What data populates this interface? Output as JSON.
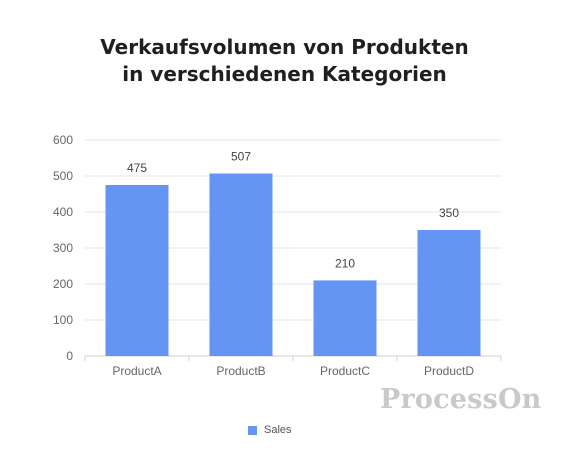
{
  "chart_data": {
    "type": "bar",
    "title": [
      "Verkaufsvolumen von Produkten",
      "in verschiedenen Kategorien"
    ],
    "categories": [
      "ProductA",
      "ProductB",
      "ProductC",
      "ProductD"
    ],
    "series": [
      {
        "name": "Sales",
        "values": [
          475,
          507,
          210,
          350
        ],
        "color": "#6495f5"
      }
    ],
    "ylim": [
      0,
      600
    ],
    "yticks": [
      0,
      100,
      200,
      300,
      400,
      500,
      600
    ],
    "grid": true,
    "data_labels": true,
    "legend_position": "bottom-center"
  },
  "watermark": "ProcessOn"
}
